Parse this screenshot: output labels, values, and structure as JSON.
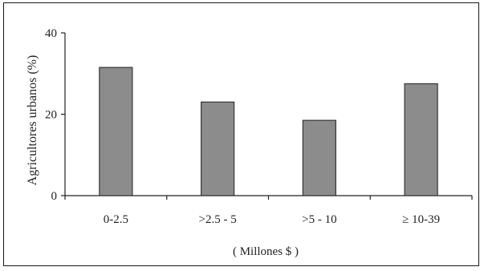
{
  "chart_data": {
    "type": "bar",
    "title": "",
    "xlabel": "( Millones $ )",
    "ylabel": "Agricultores urbanos (%)",
    "categories": [
      "0-2.5",
      ">2.5 - 5",
      ">5 - 10",
      "≥ 10-39"
    ],
    "values": [
      31.5,
      23,
      18.5,
      27.5
    ],
    "ylim": [
      0,
      40
    ],
    "yticks": [
      0,
      20,
      40
    ],
    "grid": false,
    "legend": "none",
    "colors": {
      "bar_fill": "#8c8c8c",
      "bar_stroke": "#333333",
      "axis": "#222222"
    }
  }
}
